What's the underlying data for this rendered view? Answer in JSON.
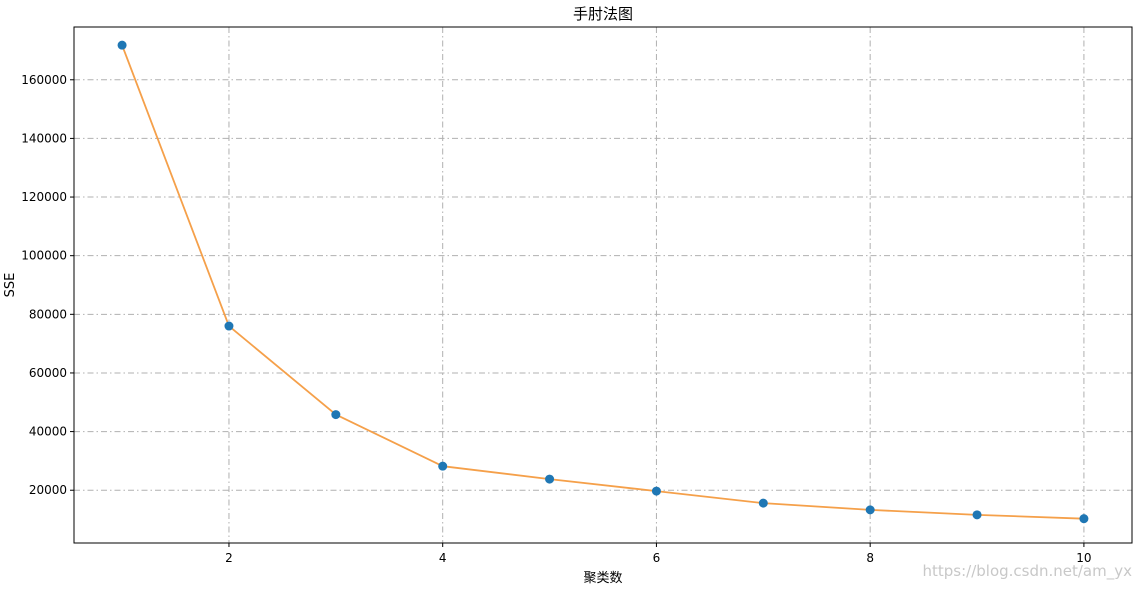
{
  "chart_data": {
    "type": "line",
    "title": "手肘法图",
    "xlabel": "聚类数",
    "ylabel": "SSE",
    "x": [
      1,
      2,
      3,
      4,
      5,
      6,
      7,
      8,
      9,
      10
    ],
    "series": [
      {
        "values": [
          171800,
          76000,
          45800,
          28200,
          23800,
          19700,
          15600,
          13300,
          11600,
          10300
        ],
        "line_color": "#f5a04a",
        "marker_color": "#1f77b4"
      }
    ],
    "xlim": [
      0.55,
      10.45
    ],
    "ylim": [
      2000,
      178000
    ],
    "xticks": [
      2,
      4,
      6,
      8,
      10
    ],
    "yticks": [
      20000,
      40000,
      60000,
      80000,
      100000,
      120000,
      140000,
      160000
    ],
    "grid": true,
    "grid_style": "dash-dot"
  },
  "watermark": "https://blog.csdn.net/am_yx"
}
